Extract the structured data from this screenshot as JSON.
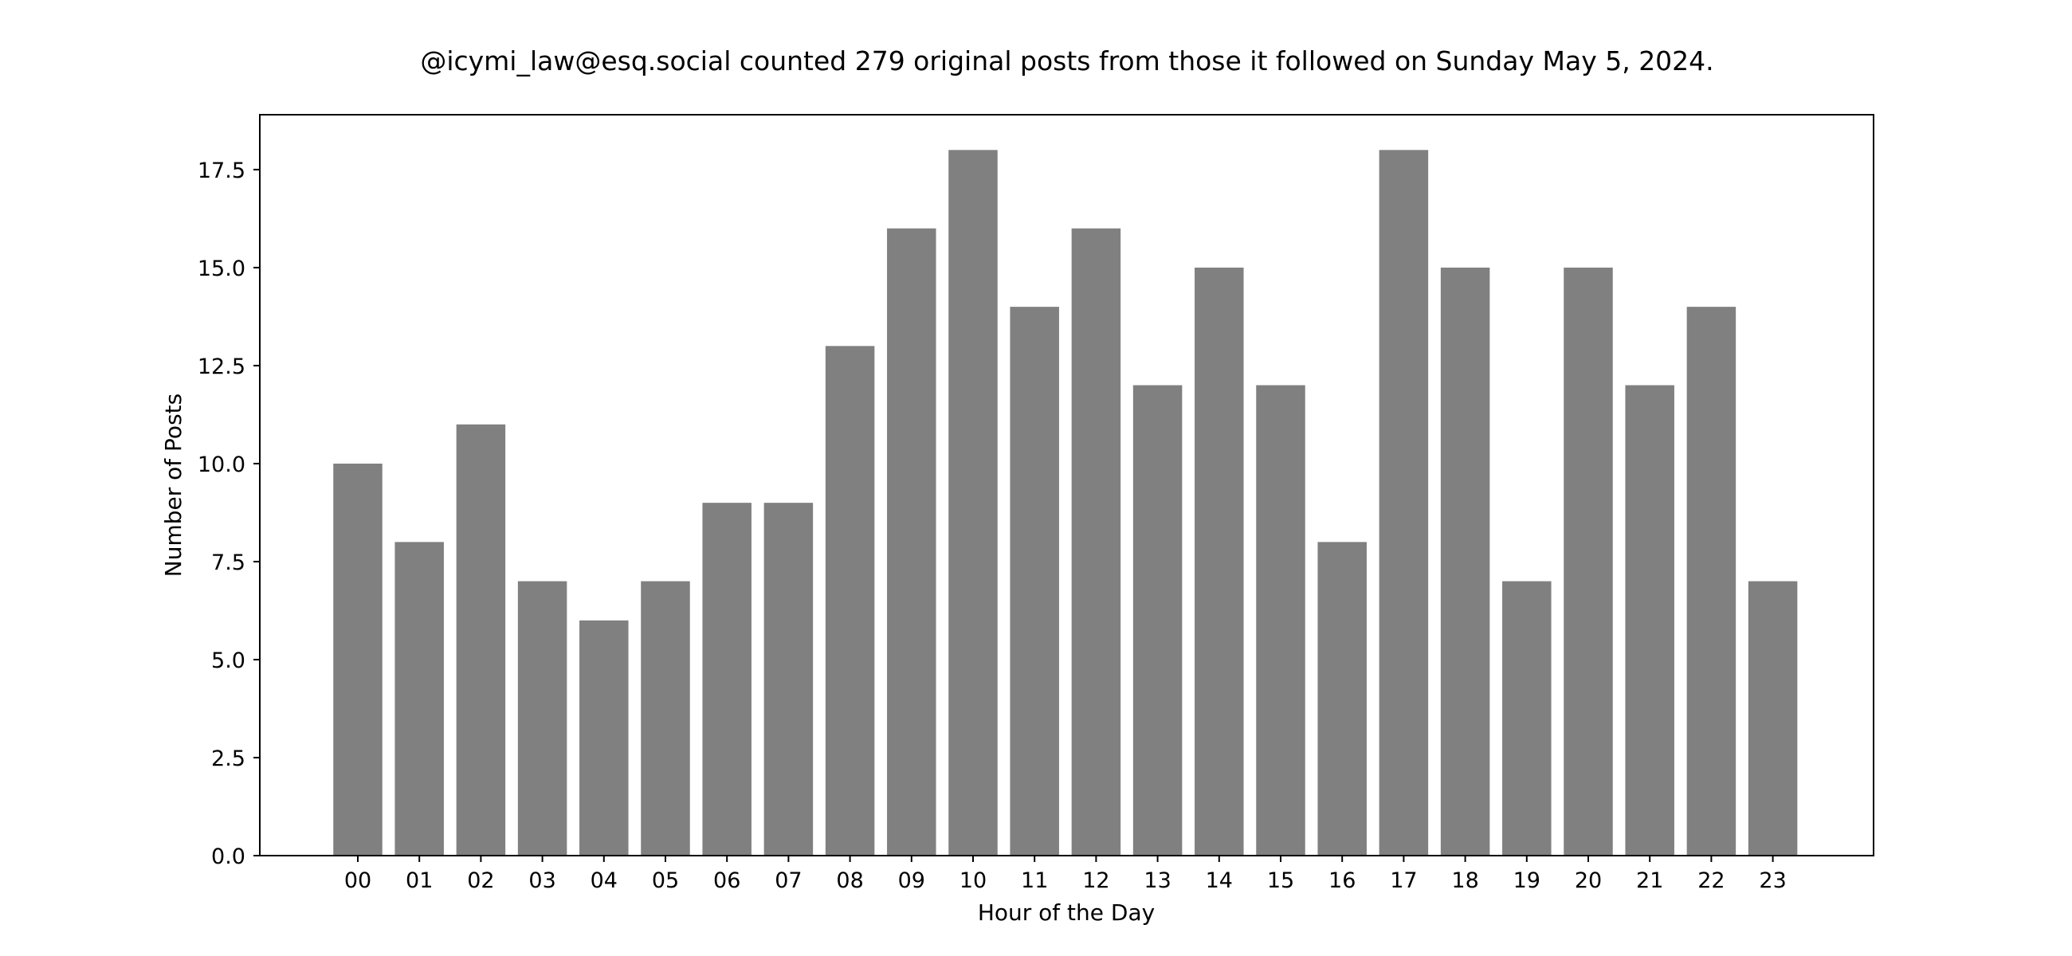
{
  "chart_data": {
    "type": "bar",
    "title": "@icymi_law@esq.social counted 279 original posts from those it followed on Sunday May 5, 2024.",
    "xlabel": "Hour of the Day",
    "ylabel": "Number of Posts",
    "categories": [
      "00",
      "01",
      "02",
      "03",
      "04",
      "05",
      "06",
      "07",
      "08",
      "09",
      "10",
      "11",
      "12",
      "13",
      "14",
      "15",
      "16",
      "17",
      "18",
      "19",
      "20",
      "21",
      "22",
      "23"
    ],
    "values": [
      10,
      8,
      11,
      7,
      6,
      7,
      9,
      9,
      13,
      16,
      18,
      14,
      16,
      12,
      15,
      12,
      8,
      18,
      15,
      7,
      15,
      12,
      14,
      7
    ],
    "yticks": [
      "0.0",
      "2.5",
      "5.0",
      "7.5",
      "10.0",
      "12.5",
      "15.0",
      "17.5"
    ],
    "ylim": [
      0,
      18.9
    ],
    "bar_color": "#808080",
    "grid": false,
    "legend": "none"
  }
}
